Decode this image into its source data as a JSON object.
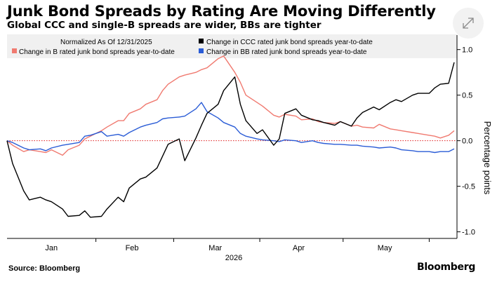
{
  "header": {
    "title": "Junk Bond Spreads by Rating Are Moving Differently",
    "subtitle": "Global CCC and single-B spreads are wider, BBs are tighter"
  },
  "controls": {
    "expand_icon": "expand-arrows-icon"
  },
  "footer": {
    "source": "Source: Bloomberg",
    "brand": "Bloomberg"
  },
  "chart_data": {
    "type": "line",
    "note": "Normalized As Of 12/31/2025",
    "year_label": "2026",
    "ylabel": "Percentage points",
    "ylim": [
      -1.0,
      1.05
    ],
    "yticks": [
      1.0,
      0.5,
      0.0,
      -0.5,
      -1.0
    ],
    "ytick_labels": [
      "1.0",
      "0.5",
      "0.0",
      "-0.5",
      "-1.0"
    ],
    "xlim": [
      "2025-12-31",
      "2026-06-11"
    ],
    "xticks": [
      {
        "label": "Jan",
        "date": "2026-01-16"
      },
      {
        "label": "Feb",
        "date": "2026-02-14"
      },
      {
        "label": "Mar",
        "date": "2026-03-16"
      },
      {
        "label": "Apr",
        "date": "2026-04-15"
      },
      {
        "label": "May",
        "date": "2026-05-16"
      }
    ],
    "grid": false,
    "zero_line": "dotted red",
    "legend_placement": "top",
    "x": [
      "2025-12-31",
      "2026-01-02",
      "2026-01-06",
      "2026-01-08",
      "2026-01-12",
      "2026-01-14",
      "2026-01-16",
      "2026-01-20",
      "2026-01-22",
      "2026-01-26",
      "2026-01-28",
      "2026-01-30",
      "2026-02-03",
      "2026-02-05",
      "2026-02-09",
      "2026-02-11",
      "2026-02-13",
      "2026-02-17",
      "2026-02-19",
      "2026-02-23",
      "2026-02-25",
      "2026-02-27",
      "2026-03-03",
      "2026-03-05",
      "2026-03-09",
      "2026-03-11",
      "2026-03-13",
      "2026-03-17",
      "2026-03-19",
      "2026-03-23",
      "2026-03-25",
      "2026-03-27",
      "2026-03-31",
      "2026-04-02",
      "2026-04-06",
      "2026-04-08",
      "2026-04-10",
      "2026-04-14",
      "2026-04-16",
      "2026-04-20",
      "2026-04-22",
      "2026-04-24",
      "2026-04-28",
      "2026-04-30",
      "2026-05-04",
      "2026-05-06",
      "2026-05-08",
      "2026-05-12",
      "2026-05-14",
      "2026-05-18",
      "2026-05-20",
      "2026-05-22",
      "2026-05-26",
      "2026-05-28",
      "2026-06-01",
      "2026-06-03",
      "2026-06-05",
      "2026-06-08",
      "2026-06-10"
    ],
    "series": [
      {
        "name": "Change in CCC rated junk bond spreads year-to-date",
        "color": "#000000",
        "values": [
          0.0,
          -0.25,
          -0.55,
          -0.65,
          -0.62,
          -0.65,
          -0.67,
          -0.75,
          -0.83,
          -0.82,
          -0.77,
          -0.84,
          -0.83,
          -0.75,
          -0.62,
          -0.67,
          -0.52,
          -0.42,
          -0.4,
          -0.3,
          -0.17,
          -0.04,
          0.02,
          -0.22,
          0.03,
          0.17,
          0.3,
          0.4,
          0.55,
          0.7,
          0.4,
          0.22,
          0.08,
          0.12,
          -0.05,
          0.02,
          0.3,
          0.35,
          0.28,
          0.23,
          0.22,
          0.2,
          0.17,
          0.21,
          0.16,
          0.25,
          0.31,
          0.37,
          0.34,
          0.42,
          0.45,
          0.43,
          0.5,
          0.52,
          0.52,
          0.58,
          0.62,
          0.63,
          0.86
        ]
      },
      {
        "name": "Change in B rated junk bond spreads year-to-date",
        "color": "#f07a70",
        "values": [
          0.0,
          -0.05,
          -0.12,
          -0.1,
          -0.12,
          -0.13,
          -0.1,
          -0.16,
          -0.1,
          -0.05,
          0.02,
          0.05,
          0.11,
          0.15,
          0.22,
          0.22,
          0.3,
          0.35,
          0.4,
          0.45,
          0.55,
          0.62,
          0.7,
          0.72,
          0.75,
          0.78,
          0.8,
          0.9,
          0.93,
          0.75,
          0.64,
          0.5,
          0.42,
          0.38,
          0.28,
          0.26,
          0.29,
          0.27,
          0.23,
          0.24,
          0.21,
          0.2,
          0.19,
          0.21,
          0.16,
          0.17,
          0.15,
          0.14,
          0.18,
          0.13,
          0.12,
          0.11,
          0.09,
          0.08,
          0.06,
          0.05,
          0.03,
          0.06,
          0.11
        ]
      },
      {
        "name": "Change in BB rated junk bond spreads year-to-date",
        "color": "#2a5cd6",
        "values": [
          0.0,
          -0.02,
          -0.08,
          -0.1,
          -0.09,
          -0.11,
          -0.08,
          -0.05,
          -0.04,
          -0.02,
          0.05,
          0.06,
          0.1,
          0.05,
          0.07,
          0.05,
          0.09,
          0.15,
          0.17,
          0.2,
          0.24,
          0.25,
          0.26,
          0.27,
          0.35,
          0.42,
          0.32,
          0.25,
          0.2,
          0.15,
          0.08,
          0.05,
          0.02,
          0.01,
          0.0,
          -0.01,
          0.01,
          0.0,
          -0.02,
          0.0,
          -0.02,
          -0.03,
          -0.04,
          -0.04,
          -0.05,
          -0.05,
          -0.06,
          -0.07,
          -0.08,
          -0.07,
          -0.08,
          -0.1,
          -0.11,
          -0.12,
          -0.12,
          -0.13,
          -0.12,
          -0.12,
          -0.09
        ]
      }
    ]
  }
}
